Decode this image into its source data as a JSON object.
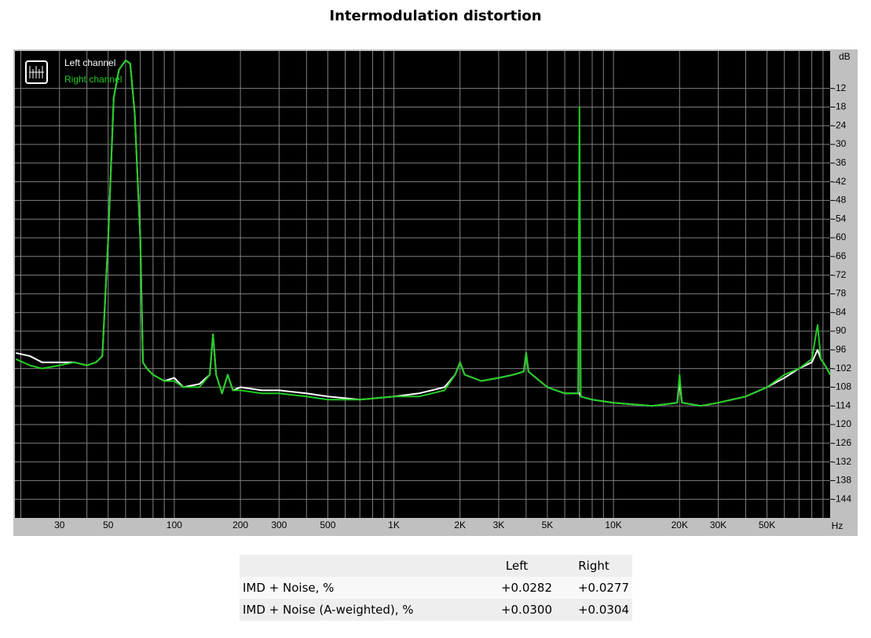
{
  "chart_data": {
    "type": "line",
    "title": "Intermodulation distortion",
    "x_unit": "Hz",
    "y_unit": "dB",
    "xscale": "log",
    "grid": true,
    "legend": "upper left",
    "x": [
      19,
      22,
      25,
      30,
      35,
      40,
      44,
      47,
      50,
      53,
      56,
      60,
      63,
      66,
      70,
      72,
      75,
      80,
      90,
      100,
      110,
      130,
      145,
      150,
      155,
      165,
      175,
      185,
      200,
      250,
      300,
      400,
      500,
      700,
      1000,
      1300,
      1700,
      1900,
      2000,
      2100,
      2500,
      3000,
      3500,
      3900,
      4000,
      4100,
      5000,
      6000,
      6900,
      7000,
      7100,
      8000,
      10000,
      15000,
      19500,
      20000,
      20500,
      25000,
      30000,
      40000,
      50000,
      60000,
      70000,
      80000,
      85000,
      88000,
      92000,
      97000
    ],
    "series": [
      {
        "name": "Left channel",
        "color": "#ffffff",
        "values": [
          -97,
          -98,
          -100,
          -100,
          -100,
          -101,
          -100,
          -98,
          -60,
          -15,
          -6,
          -3,
          -4,
          -20,
          -60,
          -100,
          -102,
          -104,
          -106,
          -105,
          -108,
          -107,
          -104,
          -91,
          -104,
          -110,
          -104,
          -109,
          -108,
          -109,
          -109,
          -110,
          -111,
          -112,
          -111,
          -110,
          -108,
          -104,
          -100,
          -104,
          -106,
          -105,
          -104,
          -103,
          -97,
          -103,
          -108,
          -110,
          -110,
          -110,
          -111,
          -112,
          -113,
          -114,
          -113,
          -106,
          -113,
          -114,
          -113,
          -111,
          -108,
          -105,
          -102,
          -100,
          -96,
          -99,
          -101,
          -104
        ]
      },
      {
        "name": "Right channel",
        "color": "#22cc22",
        "values": [
          -99,
          -101,
          -102,
          -101,
          -100,
          -101,
          -100,
          -98,
          -60,
          -15,
          -6,
          -3,
          -4,
          -20,
          -60,
          -100,
          -102,
          -104,
          -106,
          -106,
          -108,
          -108,
          -104,
          -91,
          -104,
          -110,
          -104,
          -109,
          -109,
          -110,
          -110,
          -111,
          -112,
          -112,
          -111,
          -111,
          -109,
          -104,
          -100,
          -104,
          -106,
          -105,
          -104,
          -103,
          -97,
          -103,
          -108,
          -110,
          -110,
          -18,
          -111,
          -112,
          -113,
          -114,
          -113,
          -104,
          -113,
          -114,
          -113,
          -111,
          -108,
          -104,
          -102,
          -99,
          -88,
          -99,
          -101,
          -104
        ]
      }
    ],
    "xlim": [
      18.8,
      97000
    ],
    "xticks": [
      30,
      50,
      100,
      200,
      300,
      500,
      {
        "value": 1000,
        "label": "1K"
      },
      {
        "value": 2000,
        "label": "2K"
      },
      {
        "value": 3000,
        "label": "3K"
      },
      {
        "value": 5000,
        "label": "5K"
      },
      {
        "value": 10000,
        "label": "10K"
      },
      {
        "value": 20000,
        "label": "20K"
      },
      {
        "value": 30000,
        "label": "30K"
      },
      {
        "value": 50000,
        "label": "50K"
      }
    ],
    "xminor": [
      20,
      40,
      60,
      70,
      80,
      90,
      400,
      600,
      700,
      800,
      900,
      4000,
      6000,
      7000,
      8000,
      9000,
      40000,
      60000,
      70000,
      80000,
      90000
    ],
    "ylim": [
      -150,
      0
    ],
    "yticks": [
      -12,
      -18,
      -24,
      -30,
      -36,
      -42,
      -48,
      -54,
      -60,
      -66,
      -72,
      -78,
      -84,
      -90,
      -96,
      -102,
      -108,
      -114,
      -120,
      -126,
      -132,
      -138,
      -144
    ]
  },
  "table": {
    "columns": [
      "Left",
      "Right"
    ],
    "rows": [
      {
        "label": "IMD + Noise, %",
        "values": [
          "+0.0282",
          "+0.0277"
        ]
      },
      {
        "label": "IMD + Noise (A-weighted), %",
        "values": [
          "+0.0300",
          "+0.0304"
        ]
      }
    ]
  }
}
